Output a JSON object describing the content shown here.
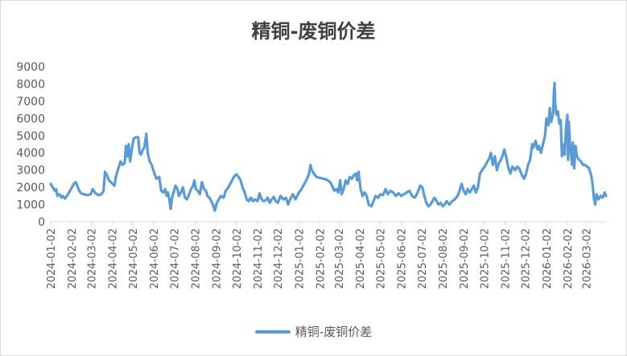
{
  "chart_data": {
    "type": "line",
    "title": "精铜-废铜价差",
    "xlabel": "",
    "ylabel": "",
    "ylim": [
      0,
      9000
    ],
    "yticks": [
      "0",
      "1000",
      "2000",
      "3000",
      "4000",
      "5000",
      "6000",
      "7000",
      "8000",
      "9000"
    ],
    "xlim": [
      "2024-01-02",
      "2026-03-31"
    ],
    "xticks": [
      "2024-01-02",
      "2024-02-02",
      "2024-03-02",
      "2024-04-02",
      "2024-05-02",
      "2024-06-02",
      "2024-07-02",
      "2024-08-02",
      "2024-09-02",
      "2024-10-02",
      "2024-11-02",
      "2024-12-02",
      "2025-01-02",
      "2025-02-02",
      "2025-03-02",
      "2025-04-02",
      "2025-05-02",
      "2025-06-02",
      "2025-07-02",
      "2025-08-02",
      "2025-09-02",
      "2025-10-02",
      "2025-11-02",
      "2025-12-02",
      "2026-01-02",
      "2026-02-02",
      "2026-03-02"
    ],
    "grid": false,
    "legend_position": "bottom",
    "series": [
      {
        "name": "精铜-废铜价差",
        "color": "#5b9bd5",
        "points": [
          [
            "2024-01-02",
            2200
          ],
          [
            "2024-01-05",
            2000
          ],
          [
            "2024-01-08",
            1800
          ],
          [
            "2024-01-10",
            1900
          ],
          [
            "2024-01-12",
            1500
          ],
          [
            "2024-01-15",
            1600
          ],
          [
            "2024-01-18",
            1400
          ],
          [
            "2024-01-20",
            1500
          ],
          [
            "2024-01-23",
            1350
          ],
          [
            "2024-01-26",
            1500
          ],
          [
            "2024-01-29",
            1700
          ],
          [
            "2024-02-01",
            1900
          ],
          [
            "2024-02-05",
            2200
          ],
          [
            "2024-02-08",
            2300
          ],
          [
            "2024-02-10",
            2100
          ],
          [
            "2024-02-13",
            1800
          ],
          [
            "2024-02-16",
            1650
          ],
          [
            "2024-02-20",
            1600
          ],
          [
            "2024-02-25",
            1550
          ],
          [
            "2024-03-01",
            1600
          ],
          [
            "2024-03-04",
            1900
          ],
          [
            "2024-03-07",
            1700
          ],
          [
            "2024-03-10",
            1600
          ],
          [
            "2024-03-13",
            1550
          ],
          [
            "2024-03-17",
            1600
          ],
          [
            "2024-03-20",
            1800
          ],
          [
            "2024-03-22",
            2900
          ],
          [
            "2024-03-25",
            2700
          ],
          [
            "2024-03-28",
            2400
          ],
          [
            "2024-04-02",
            2200
          ],
          [
            "2024-04-05",
            2100
          ],
          [
            "2024-04-07",
            2600
          ],
          [
            "2024-04-10",
            3000
          ],
          [
            "2024-04-14",
            3500
          ],
          [
            "2024-04-17",
            3300
          ],
          [
            "2024-04-20",
            3400
          ],
          [
            "2024-04-22",
            4400
          ],
          [
            "2024-04-24",
            3800
          ],
          [
            "2024-04-26",
            4500
          ],
          [
            "2024-04-28",
            3500
          ],
          [
            "2024-05-01",
            4300
          ],
          [
            "2024-05-03",
            4800
          ],
          [
            "2024-05-06",
            4900
          ],
          [
            "2024-05-10",
            4900
          ],
          [
            "2024-05-12",
            4000
          ],
          [
            "2024-05-14",
            3900
          ],
          [
            "2024-05-17",
            4200
          ],
          [
            "2024-05-19",
            4300
          ],
          [
            "2024-05-21",
            4800
          ],
          [
            "2024-05-22",
            5100
          ],
          [
            "2024-05-24",
            4000
          ],
          [
            "2024-05-27",
            3500
          ],
          [
            "2024-05-30",
            3300
          ],
          [
            "2024-06-03",
            2800
          ],
          [
            "2024-06-06",
            2500
          ],
          [
            "2024-06-10",
            2600
          ],
          [
            "2024-06-13",
            1800
          ],
          [
            "2024-06-16",
            1700
          ],
          [
            "2024-06-19",
            1900
          ],
          [
            "2024-06-21",
            1500
          ],
          [
            "2024-06-23",
            1700
          ],
          [
            "2024-06-25",
            1300
          ],
          [
            "2024-06-27",
            750
          ],
          [
            "2024-06-29",
            1400
          ],
          [
            "2024-07-02",
            1800
          ],
          [
            "2024-07-04",
            2100
          ],
          [
            "2024-07-07",
            1900
          ],
          [
            "2024-07-09",
            1500
          ],
          [
            "2024-07-12",
            1700
          ],
          [
            "2024-07-15",
            2000
          ],
          [
            "2024-07-18",
            1400
          ],
          [
            "2024-07-21",
            1300
          ],
          [
            "2024-07-24",
            1600
          ],
          [
            "2024-07-27",
            1900
          ],
          [
            "2024-07-30",
            2100
          ],
          [
            "2024-08-01",
            2400
          ],
          [
            "2024-08-03",
            1900
          ],
          [
            "2024-08-06",
            1800
          ],
          [
            "2024-08-09",
            1600
          ],
          [
            "2024-08-12",
            2300
          ],
          [
            "2024-08-15",
            1900
          ],
          [
            "2024-08-18",
            1800
          ],
          [
            "2024-08-20",
            1500
          ],
          [
            "2024-08-23",
            1400
          ],
          [
            "2024-08-26",
            1200
          ],
          [
            "2024-08-29",
            900
          ],
          [
            "2024-08-31",
            650
          ],
          [
            "2024-09-03",
            1100
          ],
          [
            "2024-09-06",
            1300
          ],
          [
            "2024-09-09",
            1500
          ],
          [
            "2024-09-13",
            1400
          ],
          [
            "2024-09-16",
            1800
          ],
          [
            "2024-09-20",
            2000
          ],
          [
            "2024-09-24",
            2300
          ],
          [
            "2024-09-28",
            2600
          ],
          [
            "2024-10-02",
            2750
          ],
          [
            "2024-10-05",
            2600
          ],
          [
            "2024-10-08",
            2400
          ],
          [
            "2024-10-11",
            2000
          ],
          [
            "2024-10-14",
            1700
          ],
          [
            "2024-10-17",
            1300
          ],
          [
            "2024-10-20",
            1200
          ],
          [
            "2024-10-23",
            1400
          ],
          [
            "2024-10-26",
            1200
          ],
          [
            "2024-10-29",
            1300
          ],
          [
            "2024-11-02",
            1200
          ],
          [
            "2024-11-05",
            1650
          ],
          [
            "2024-11-08",
            1300
          ],
          [
            "2024-11-11",
            1200
          ],
          [
            "2024-11-14",
            1250
          ],
          [
            "2024-11-17",
            1400
          ],
          [
            "2024-11-20",
            1100
          ],
          [
            "2024-11-23",
            1300
          ],
          [
            "2024-11-26",
            1450
          ],
          [
            "2024-11-29",
            1200
          ],
          [
            "2024-12-02",
            1100
          ],
          [
            "2024-12-06",
            1500
          ],
          [
            "2024-12-10",
            1300
          ],
          [
            "2024-12-14",
            1400
          ],
          [
            "2024-12-17",
            1000
          ],
          [
            "2024-12-20",
            1300
          ],
          [
            "2024-12-24",
            1600
          ],
          [
            "2024-12-28",
            1300
          ],
          [
            "2025-01-02",
            1700
          ],
          [
            "2025-01-06",
            1900
          ],
          [
            "2025-01-10",
            2200
          ],
          [
            "2025-01-14",
            2500
          ],
          [
            "2025-01-17",
            2800
          ],
          [
            "2025-01-19",
            3300
          ],
          [
            "2025-01-21",
            3000
          ],
          [
            "2025-01-24",
            2800
          ],
          [
            "2025-01-28",
            2600
          ],
          [
            "2025-02-02",
            2550
          ],
          [
            "2025-02-07",
            2500
          ],
          [
            "2025-02-12",
            2450
          ],
          [
            "2025-02-17",
            2300
          ],
          [
            "2025-02-20",
            2100
          ],
          [
            "2025-02-23",
            1800
          ],
          [
            "2025-02-26",
            1900
          ],
          [
            "2025-03-01",
            1700
          ],
          [
            "2025-03-04",
            2400
          ],
          [
            "2025-03-06",
            1600
          ],
          [
            "2025-03-09",
            1900
          ],
          [
            "2025-03-12",
            2400
          ],
          [
            "2025-03-15",
            2200
          ],
          [
            "2025-03-18",
            2600
          ],
          [
            "2025-03-21",
            2500
          ],
          [
            "2025-03-24",
            2700
          ],
          [
            "2025-03-27",
            2800
          ],
          [
            "2025-03-29",
            2400
          ],
          [
            "2025-03-31",
            2900
          ],
          [
            "2025-04-03",
            1900
          ],
          [
            "2025-04-06",
            1500
          ],
          [
            "2025-04-09",
            1700
          ],
          [
            "2025-04-12",
            1500
          ],
          [
            "2025-04-15",
            1000
          ],
          [
            "2025-04-19",
            900
          ],
          [
            "2025-04-22",
            1200
          ],
          [
            "2025-04-25",
            1500
          ],
          [
            "2025-04-29",
            1400
          ],
          [
            "2025-05-02",
            1600
          ],
          [
            "2025-05-06",
            1550
          ],
          [
            "2025-05-10",
            1900
          ],
          [
            "2025-05-13",
            1600
          ],
          [
            "2025-05-17",
            1800
          ],
          [
            "2025-05-21",
            1700
          ],
          [
            "2025-05-25",
            1500
          ],
          [
            "2025-05-29",
            1650
          ],
          [
            "2025-06-02",
            1500
          ],
          [
            "2025-06-06",
            1600
          ],
          [
            "2025-06-10",
            1700
          ],
          [
            "2025-06-14",
            1800
          ],
          [
            "2025-06-18",
            1500
          ],
          [
            "2025-06-22",
            1400
          ],
          [
            "2025-06-26",
            1700
          ],
          [
            "2025-06-30",
            2100
          ],
          [
            "2025-07-03",
            2000
          ],
          [
            "2025-07-06",
            1500
          ],
          [
            "2025-07-09",
            1100
          ],
          [
            "2025-07-12",
            900
          ],
          [
            "2025-07-15",
            1000
          ],
          [
            "2025-07-18",
            1200
          ],
          [
            "2025-07-21",
            1400
          ],
          [
            "2025-07-24",
            1200
          ],
          [
            "2025-07-27",
            1000
          ],
          [
            "2025-07-30",
            1100
          ],
          [
            "2025-08-02",
            900
          ],
          [
            "2025-08-05",
            1000
          ],
          [
            "2025-08-08",
            1200
          ],
          [
            "2025-08-12",
            1000
          ],
          [
            "2025-08-16",
            1200
          ],
          [
            "2025-08-20",
            1300
          ],
          [
            "2025-08-24",
            1500
          ],
          [
            "2025-08-27",
            1800
          ],
          [
            "2025-08-30",
            2200
          ],
          [
            "2025-09-02",
            1800
          ],
          [
            "2025-09-05",
            1600
          ],
          [
            "2025-09-08",
            1900
          ],
          [
            "2025-09-11",
            1700
          ],
          [
            "2025-09-14",
            1900
          ],
          [
            "2025-09-17",
            2100
          ],
          [
            "2025-09-20",
            1700
          ],
          [
            "2025-09-23",
            2000
          ],
          [
            "2025-09-26",
            2800
          ],
          [
            "2025-09-29",
            3000
          ],
          [
            "2025-10-03",
            3200
          ],
          [
            "2025-10-07",
            3500
          ],
          [
            "2025-10-10",
            3700
          ],
          [
            "2025-10-12",
            4000
          ],
          [
            "2025-10-15",
            3300
          ],
          [
            "2025-10-18",
            3800
          ],
          [
            "2025-10-21",
            3000
          ],
          [
            "2025-10-24",
            3400
          ],
          [
            "2025-10-27",
            3600
          ],
          [
            "2025-10-30",
            3900
          ],
          [
            "2025-11-01",
            4200
          ],
          [
            "2025-11-04",
            3700
          ],
          [
            "2025-11-07",
            3100
          ],
          [
            "2025-11-10",
            2800
          ],
          [
            "2025-11-13",
            3200
          ],
          [
            "2025-11-17",
            3000
          ],
          [
            "2025-11-20",
            3200
          ],
          [
            "2025-11-23",
            3100
          ],
          [
            "2025-11-27",
            2700
          ],
          [
            "2025-11-30",
            2500
          ],
          [
            "2025-12-03",
            2800
          ],
          [
            "2025-12-06",
            3300
          ],
          [
            "2025-12-09",
            3600
          ],
          [
            "2025-12-12",
            4500
          ],
          [
            "2025-12-14",
            4300
          ],
          [
            "2025-12-17",
            4700
          ],
          [
            "2025-12-20",
            4200
          ],
          [
            "2025-12-22",
            4400
          ],
          [
            "2025-12-25",
            4000
          ],
          [
            "2025-12-28",
            4500
          ],
          [
            "2025-12-31",
            5000
          ],
          [
            "2026-01-02",
            6000
          ],
          [
            "2026-01-05",
            5600
          ],
          [
            "2026-01-07",
            6600
          ],
          [
            "2026-01-09",
            5800
          ],
          [
            "2026-01-12",
            6300
          ],
          [
            "2026-01-13",
            7500
          ],
          [
            "2026-01-14",
            8050
          ],
          [
            "2026-01-15",
            6900
          ],
          [
            "2026-01-17",
            6200
          ],
          [
            "2026-01-19",
            6400
          ],
          [
            "2026-01-21",
            5700
          ],
          [
            "2026-01-23",
            5900
          ],
          [
            "2026-01-25",
            3800
          ],
          [
            "2026-01-27",
            4500
          ],
          [
            "2026-01-29",
            3900
          ],
          [
            "2026-01-31",
            5500
          ],
          [
            "2026-02-02",
            6200
          ],
          [
            "2026-02-03",
            3600
          ],
          [
            "2026-02-04",
            5800
          ],
          [
            "2026-02-06",
            4400
          ],
          [
            "2026-02-08",
            3700
          ],
          [
            "2026-02-09",
            3300
          ],
          [
            "2026-02-10",
            4600
          ],
          [
            "2026-02-12",
            3100
          ],
          [
            "2026-02-14",
            4400
          ],
          [
            "2026-02-16",
            3800
          ],
          [
            "2026-02-19",
            3600
          ],
          [
            "2026-02-22",
            3500
          ],
          [
            "2026-02-25",
            3300
          ],
          [
            "2026-02-28",
            3300
          ],
          [
            "2026-03-03",
            3200
          ],
          [
            "2026-03-06",
            3100
          ],
          [
            "2026-03-09",
            2700
          ],
          [
            "2026-03-11",
            2200
          ],
          [
            "2026-03-13",
            1400
          ],
          [
            "2026-03-15",
            1000
          ],
          [
            "2026-03-17",
            1600
          ],
          [
            "2026-03-20",
            1300
          ],
          [
            "2026-03-23",
            1500
          ],
          [
            "2026-03-26",
            1400
          ],
          [
            "2026-03-29",
            1700
          ],
          [
            "2026-03-31",
            1500
          ]
        ]
      }
    ]
  }
}
